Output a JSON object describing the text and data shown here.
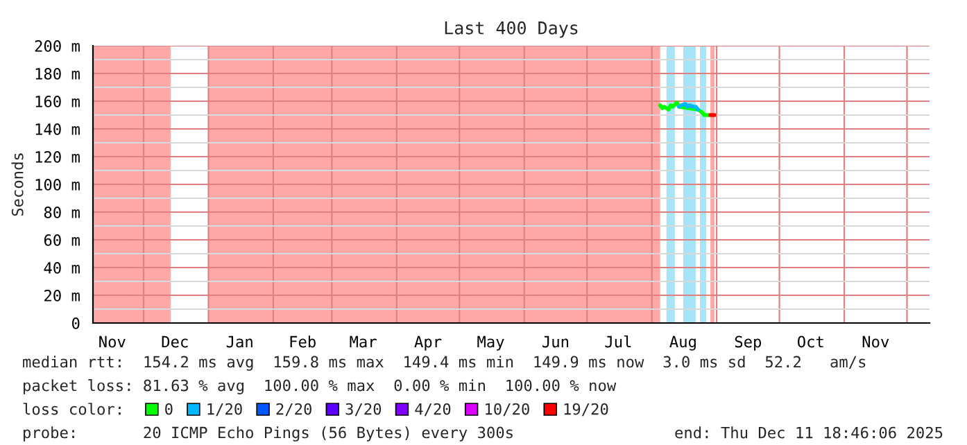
{
  "chart_data": {
    "type": "line",
    "title": "Last 400 Days",
    "ylabel": "Seconds",
    "xlim": [
      "2024-11-06T18:46",
      "2025-12-11T18:46"
    ],
    "xticks": [
      {
        "value": "2024-11-16",
        "label": "Nov"
      },
      {
        "value": "2024-12-01",
        "label": null
      },
      {
        "value": "2024-12-16",
        "label": "Dec"
      },
      {
        "value": "2025-01-01",
        "label": null
      },
      {
        "value": "2025-01-16",
        "label": "Jan"
      },
      {
        "value": "2025-02-01",
        "label": null
      },
      {
        "value": "2025-02-15",
        "label": "Feb"
      },
      {
        "value": "2025-03-01",
        "label": null
      },
      {
        "value": "2025-03-16",
        "label": "Mar"
      },
      {
        "value": "2025-04-01",
        "label": null
      },
      {
        "value": "2025-04-16",
        "label": "Apr"
      },
      {
        "value": "2025-05-01",
        "label": null
      },
      {
        "value": "2025-05-16",
        "label": "May"
      },
      {
        "value": "2025-06-01",
        "label": null
      },
      {
        "value": "2025-06-16",
        "label": "Jun"
      },
      {
        "value": "2025-07-01",
        "label": null
      },
      {
        "value": "2025-07-16",
        "label": "Jul"
      },
      {
        "value": "2025-08-01",
        "label": null
      },
      {
        "value": "2025-08-16",
        "label": "Aug"
      },
      {
        "value": "2025-09-01",
        "label": null
      },
      {
        "value": "2025-09-16",
        "label": "Sep"
      },
      {
        "value": "2025-10-01",
        "label": null
      },
      {
        "value": "2025-10-16",
        "label": "Oct"
      },
      {
        "value": "2025-11-01",
        "label": null
      },
      {
        "value": "2025-11-16",
        "label": "Nov"
      },
      {
        "value": "2025-12-01",
        "label": null
      }
    ],
    "ylim": [
      0,
      200
    ],
    "yticks": [
      0,
      {
        "value": 10,
        "label": null
      },
      {
        "value": 20,
        "label": "20 m"
      },
      {
        "value": 30,
        "label": null
      },
      {
        "value": 40,
        "label": "40 m"
      },
      {
        "value": 50,
        "label": null
      },
      {
        "value": 60,
        "label": "60 m"
      },
      {
        "value": 70,
        "label": null
      },
      {
        "value": 80,
        "label": "80 m"
      },
      {
        "value": 90,
        "label": null
      },
      {
        "value": 100,
        "label": "100 m"
      },
      {
        "value": 110,
        "label": null
      },
      {
        "value": 120,
        "label": "120 m"
      },
      {
        "value": 130,
        "label": null
      },
      {
        "value": 140,
        "label": "140 m"
      },
      {
        "value": 150,
        "label": null
      },
      {
        "value": 160,
        "label": "160 m"
      },
      {
        "value": 170,
        "label": null
      },
      {
        "value": 180,
        "label": "180 m"
      },
      {
        "value": 190,
        "label": null
      },
      {
        "value": 200,
        "label": "200 m"
      }
    ],
    "grid": true,
    "bands": [
      {
        "axis": "x",
        "from": "2024-11-06T18:46",
        "to": "2024-12-14",
        "color": "#ffa8a8"
      },
      {
        "axis": "x",
        "from": "2025-01-01",
        "to": "2025-08-05",
        "color": "#ffa8a8"
      },
      {
        "axis": "x",
        "from": "2025-08-08",
        "to": "2025-08-12",
        "color": "#a8e4f8"
      },
      {
        "axis": "x",
        "from": "2025-08-16",
        "to": "2025-08-22",
        "color": "#a8e4f8"
      },
      {
        "axis": "x",
        "from": "2025-08-24",
        "to": "2025-08-27",
        "color": "#a8e4f8"
      },
      {
        "axis": "x",
        "from": "2025-08-29",
        "to": "2025-08-31",
        "color": "#ffa8a8"
      }
    ],
    "series": [
      {
        "name": "0",
        "color": "#00ff00",
        "x": [
          "2025-08-05",
          "2025-08-06",
          "2025-08-07",
          "2025-08-09",
          "2025-08-10",
          "2025-08-11",
          "2025-08-13",
          "2025-08-14",
          "2025-08-23",
          "2025-08-25",
          "2025-08-26",
          "2025-08-28",
          "2025-08-29"
        ],
        "values": [
          157,
          155,
          156,
          154,
          157,
          156,
          159,
          156,
          154,
          152,
          150,
          150,
          150
        ]
      },
      {
        "name": "1/20",
        "color": "#00b8ff",
        "x": [
          "2025-08-14",
          "2025-08-15",
          "2025-08-17",
          "2025-08-18",
          "2025-08-19",
          "2025-08-21",
          "2025-08-22",
          "2025-08-23"
        ],
        "values": [
          156,
          157,
          158,
          156,
          157,
          156,
          156,
          154
        ]
      },
      {
        "name": "2/20",
        "color": "#0059ff"
      },
      {
        "name": "3/20",
        "color": "#5e00ff"
      },
      {
        "name": "4/20",
        "color": "#7e00ff"
      },
      {
        "name": "10/20",
        "color": "#dd00ff"
      },
      {
        "name": "19/20",
        "color": "#ff0000",
        "x": [
          "2025-08-29",
          "2025-08-30",
          "2025-08-31"
        ],
        "values": [
          150,
          150,
          150
        ]
      }
    ],
    "legend": "bottom",
    "legend_title": "loss color:",
    "annotations": [
      "median rtt:  154.2 ms avg  159.8 ms max  149.4 ms min  149.9 ms now  3.0 ms sd  52.2   am/s",
      "packet loss: 81.63 % avg  100.00 % max  0.00 % min  100.00 % now",
      "probe:       20 ICMP Echo Pings (56 Bytes) every 300s",
      "end: Thu Dec 11 18:46:06 2025"
    ]
  }
}
